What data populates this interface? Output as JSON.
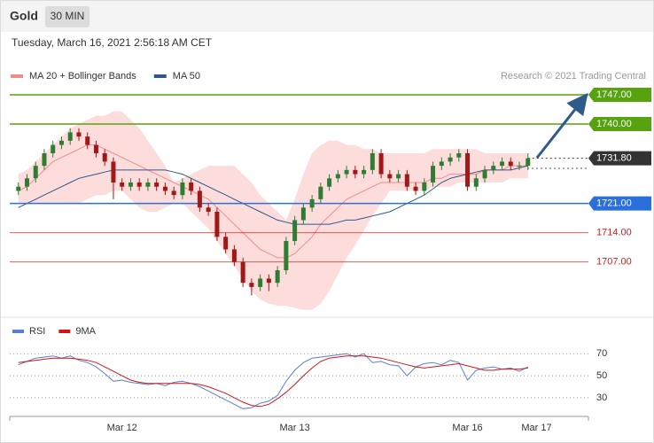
{
  "header": {
    "title": "Gold",
    "interval": "30 MIN",
    "timestamp": "Tuesday, March 16, 2021 2:56:18 AM CET"
  },
  "chart_data": [
    {
      "type": "candlestick",
      "attribution": "Research © 2021 Trading Central",
      "categories": [
        null,
        null,
        null,
        null,
        null,
        null,
        null,
        null,
        null,
        null,
        null,
        null,
        "Mar 12",
        null,
        null,
        null,
        null,
        null,
        null,
        null,
        null,
        null,
        null,
        null,
        null,
        null,
        null,
        null,
        null,
        null,
        null,
        null,
        "Mar 13",
        null,
        null,
        null,
        null,
        null,
        null,
        null,
        null,
        null,
        null,
        null,
        null,
        null,
        null,
        null,
        null,
        null,
        null,
        null,
        "Mar 16",
        null,
        null,
        null,
        null,
        null,
        null,
        null,
        "Mar 17"
      ],
      "open": [
        1724,
        1725,
        1727,
        1730,
        1733,
        1735,
        1736,
        1738,
        1737,
        1735,
        1733,
        1731,
        1726,
        1725,
        1726,
        1725,
        1726,
        1725,
        1724,
        1723,
        1726,
        1724,
        1720,
        1719,
        1713,
        1710,
        1707,
        1702,
        1701,
        1703,
        1702,
        1705,
        1712,
        1717,
        1720,
        1722,
        1725,
        1727,
        1728,
        1729,
        1728,
        1729,
        1733,
        1728,
        1727,
        1728,
        1725,
        1724,
        1726,
        1730,
        1731,
        1732,
        1733,
        1725,
        1727,
        1729,
        1730,
        1731,
        1730,
        1730,
        null
      ],
      "high": [
        1726,
        1728,
        1731,
        1734,
        1736,
        1737,
        1739,
        1739,
        1738,
        1736,
        1734,
        1732,
        1727,
        1727,
        1727,
        1727,
        1727,
        1726,
        1725,
        1727,
        1727,
        1725,
        1721,
        1720,
        1714,
        1711,
        1708,
        1703,
        1704,
        1704,
        1706,
        1713,
        1718,
        1721,
        1723,
        1726,
        1728,
        1729,
        1730,
        1730,
        1730,
        1734,
        1734,
        1729,
        1729,
        1729,
        1726,
        1727,
        1731,
        1732,
        1733,
        1734,
        1734,
        1728,
        1730,
        1731,
        1732,
        1732,
        1731,
        1733,
        null
      ],
      "low": [
        1723,
        1724,
        1726,
        1729,
        1732,
        1734,
        1735,
        1736,
        1734,
        1732,
        1730,
        1722,
        1724,
        1724,
        1724,
        1724,
        1724,
        1723,
        1722,
        1722,
        1723,
        1719,
        1718,
        1712,
        1709,
        1706,
        1701,
        1699,
        1700,
        1700,
        1701,
        1704,
        1711,
        1716,
        1719,
        1721,
        1724,
        1726,
        1727,
        1727,
        1727,
        1728,
        1727,
        1726,
        1726,
        1724,
        1723,
        1723,
        1725,
        1729,
        1730,
        1731,
        1724,
        1724,
        1726,
        1728,
        1729,
        1729,
        1729,
        1729,
        null
      ],
      "close": [
        1725,
        1727,
        1730,
        1733,
        1735,
        1736,
        1738,
        1737,
        1735,
        1733,
        1731,
        1726,
        1725,
        1726,
        1725,
        1726,
        1725,
        1724,
        1723,
        1726,
        1724,
        1720,
        1719,
        1713,
        1710,
        1707,
        1702,
        1701,
        1703,
        1702,
        1705,
        1712,
        1717,
        1720,
        1722,
        1725,
        1727,
        1728,
        1729,
        1728,
        1729,
        1733,
        1728,
        1727,
        1728,
        1725,
        1724,
        1726,
        1730,
        1731,
        1732,
        1733,
        1725,
        1727,
        1729,
        1730,
        1731,
        1730,
        1730,
        1731.8,
        null
      ],
      "up_color": "#2e7d32",
      "down_color": "#a01818",
      "series": [
        {
          "name": "MA 20 + Bollinger Bands",
          "color": "#f08c8c",
          "band_color": "#fddcdc",
          "values": [
            1724,
            1725,
            1727,
            1729,
            1731,
            1732,
            1733,
            1734,
            1735,
            1735,
            1734,
            1733,
            1732,
            1731,
            1730,
            1729,
            1728,
            1727,
            1726,
            1725,
            1724,
            1723,
            1722,
            1720,
            1718,
            1716,
            1714,
            1712,
            1710,
            1709,
            1708,
            1708,
            1709,
            1711,
            1713,
            1716,
            1718,
            1720,
            1722,
            1723,
            1724,
            1725,
            1726,
            1726,
            1726,
            1726,
            1726,
            1726,
            1727,
            1727,
            1728,
            1728,
            1728,
            1728,
            1729,
            1729,
            1729,
            1730,
            1730,
            1730,
            null
          ],
          "upper": [
            1728,
            1729,
            1731,
            1733,
            1735,
            1737,
            1739,
            1740,
            1741,
            1742,
            1742,
            1743,
            1743,
            1741,
            1739,
            1736,
            1733,
            1730,
            1726,
            1727,
            1728,
            1729,
            1730,
            1730,
            1730,
            1730,
            1728,
            1726,
            1723,
            1721,
            1719,
            1717,
            1722,
            1728,
            1733,
            1735,
            1736,
            1736,
            1735,
            1735,
            1734,
            1734,
            1733,
            1733,
            1733,
            1733,
            1733,
            1733,
            1734,
            1734,
            1734,
            1734,
            1734,
            1734,
            1733,
            1733,
            1733,
            1733,
            1733,
            1733,
            null
          ],
          "lower": [
            1721,
            1721,
            1721,
            1721,
            1721,
            1721,
            1721,
            1721,
            1722,
            1723,
            1723,
            1724,
            1724,
            1722,
            1720,
            1719,
            1719,
            1720,
            1721,
            1721,
            1719,
            1717,
            1715,
            1712,
            1709,
            1706,
            1703,
            1700,
            1698,
            1697,
            1696.5,
            1696.5,
            1696,
            1695.5,
            1695.5,
            1697,
            1700,
            1704,
            1708,
            1711,
            1714.5,
            1718,
            1721,
            1724,
            1724,
            1724,
            1724,
            1724,
            1725,
            1725,
            1725,
            1726,
            1726,
            1726,
            1726,
            1726,
            1726,
            1727,
            1727,
            1727,
            null
          ]
        },
        {
          "name": "MA 50",
          "color": "#2f568f",
          "values": [
            1720,
            1721,
            1722,
            1723,
            1724,
            1725,
            1726,
            1727,
            1727.5,
            1728,
            1728.5,
            1729,
            1729,
            1729,
            1729,
            1729,
            1729,
            1729,
            1728.5,
            1728,
            1727,
            1726,
            1725,
            1724,
            1723,
            1722,
            1721,
            1720,
            1719,
            1718,
            1717,
            1716.5,
            1716,
            1716,
            1716,
            1716,
            1716,
            1716.5,
            1717,
            1717,
            1717.5,
            1718,
            1718.5,
            1719,
            1720,
            1721,
            1722,
            1723,
            1724.5,
            1726,
            1727,
            1727.5,
            1728,
            1728.5,
            1729,
            1729,
            1729,
            1729,
            1729.5,
            1730,
            null
          ]
        }
      ],
      "levels": [
        {
          "value": 1747,
          "label": "1747.00",
          "color": "#56a20f",
          "filled": true,
          "style": "solid"
        },
        {
          "value": 1740,
          "label": "1740.00",
          "color": "#56a20f",
          "filled": true,
          "style": "solid"
        },
        {
          "value": 1731.8,
          "label": "1731.80",
          "color": "#333333",
          "filled": true,
          "style": "dotted"
        },
        {
          "value": 1721,
          "label": "1721.00",
          "color": "#2a6fdc",
          "filled": true,
          "style": "solid"
        },
        {
          "value": 1714,
          "label": "1714.00",
          "color": "#cc1f1f",
          "filled": false,
          "style": "solid"
        },
        {
          "value": 1707,
          "label": "1707.00",
          "color": "#cc1f1f",
          "filled": false,
          "style": "solid"
        }
      ],
      "ylim": [
        1694.4,
        1750.6
      ]
    },
    {
      "type": "line",
      "series": [
        {
          "name": "RSI",
          "color": "#5b7fd0",
          "values": [
            60,
            63,
            66,
            67,
            68,
            66,
            68,
            64,
            62,
            58,
            52,
            45,
            46,
            44,
            43,
            42,
            43,
            41,
            44,
            45,
            43,
            40,
            36,
            32,
            28,
            24,
            20,
            21,
            25,
            27,
            32,
            45,
            55,
            62,
            66,
            67,
            68,
            69,
            70,
            67,
            70,
            62,
            63,
            60,
            59,
            50,
            58,
            61,
            62,
            60,
            64,
            62,
            46,
            55,
            57,
            58,
            56,
            57,
            54,
            58,
            null
          ]
        },
        {
          "name": "9MA",
          "color": "#d41414",
          "values": [
            62,
            63,
            64,
            65,
            66,
            66,
            66,
            65,
            64,
            62,
            58,
            54,
            50,
            46,
            44,
            43,
            43,
            43,
            43,
            43,
            43,
            42,
            40,
            37,
            34,
            30,
            26,
            23,
            22,
            24,
            29,
            35,
            42,
            50,
            57,
            63,
            66,
            67,
            68,
            68,
            68,
            67,
            66,
            64,
            62,
            60,
            58,
            57,
            58,
            59,
            60,
            61,
            59,
            57,
            55,
            55,
            56,
            56,
            56,
            57,
            null
          ]
        }
      ],
      "ylim": [
        13,
        100
      ],
      "yticks": [
        30,
        50,
        70
      ],
      "grid": true
    }
  ]
}
